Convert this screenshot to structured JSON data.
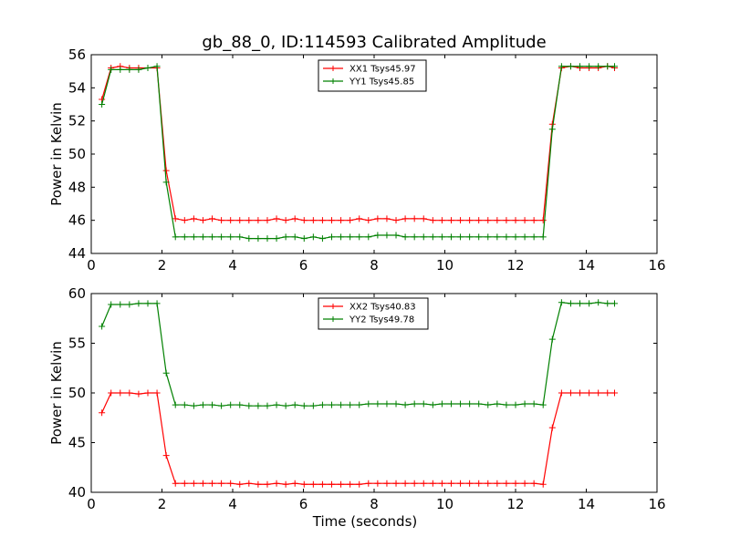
{
  "title": "gb_88_0, ID:114593 Calibrated Amplitude",
  "chart_data": [
    {
      "type": "line",
      "ylabel": "Power in Kelvin",
      "xlabel": "",
      "xlim": [
        0,
        16
      ],
      "ylim": [
        44,
        56
      ],
      "xticks": [
        0,
        2,
        4,
        6,
        8,
        10,
        12,
        14,
        16
      ],
      "yticks": [
        44,
        46,
        48,
        50,
        52,
        54,
        56
      ],
      "legend_position": "top-center",
      "x": [
        0.3,
        0.56,
        0.82,
        1.08,
        1.34,
        1.6,
        1.86,
        2.12,
        2.38,
        2.64,
        2.9,
        3.16,
        3.42,
        3.68,
        3.94,
        4.2,
        4.46,
        4.72,
        4.98,
        5.24,
        5.5,
        5.76,
        6.02,
        6.28,
        6.54,
        6.8,
        7.06,
        7.32,
        7.58,
        7.84,
        8.1,
        8.36,
        8.62,
        8.88,
        9.14,
        9.4,
        9.66,
        9.92,
        10.18,
        10.44,
        10.7,
        10.96,
        11.22,
        11.48,
        11.74,
        12.0,
        12.26,
        12.52,
        12.78,
        13.04,
        13.3,
        13.56,
        13.82,
        14.08,
        14.34,
        14.6,
        14.8
      ],
      "series": [
        {
          "name": "XX1 Tsys45.97",
          "color": "#ff0000",
          "values": [
            53.3,
            55.2,
            55.3,
            55.2,
            55.2,
            55.2,
            55.2,
            49.0,
            46.1,
            46.0,
            46.1,
            46.0,
            46.1,
            46.0,
            46.0,
            46.0,
            46.0,
            46.0,
            46.0,
            46.1,
            46.0,
            46.1,
            46.0,
            46.0,
            46.0,
            46.0,
            46.0,
            46.0,
            46.1,
            46.0,
            46.1,
            46.1,
            46.0,
            46.1,
            46.1,
            46.1,
            46.0,
            46.0,
            46.0,
            46.0,
            46.0,
            46.0,
            46.0,
            46.0,
            46.0,
            46.0,
            46.0,
            46.0,
            46.0,
            51.8,
            55.2,
            55.3,
            55.2,
            55.2,
            55.2,
            55.3,
            55.2
          ]
        },
        {
          "name": "YY1 Tsys45.85",
          "color": "#008000",
          "values": [
            53.0,
            55.1,
            55.1,
            55.1,
            55.1,
            55.2,
            55.3,
            48.3,
            45.0,
            45.0,
            45.0,
            45.0,
            45.0,
            45.0,
            45.0,
            45.0,
            44.9,
            44.9,
            44.9,
            44.9,
            45.0,
            45.0,
            44.9,
            45.0,
            44.9,
            45.0,
            45.0,
            45.0,
            45.0,
            45.0,
            45.1,
            45.1,
            45.1,
            45.0,
            45.0,
            45.0,
            45.0,
            45.0,
            45.0,
            45.0,
            45.0,
            45.0,
            45.0,
            45.0,
            45.0,
            45.0,
            45.0,
            45.0,
            45.0,
            51.5,
            55.3,
            55.3,
            55.3,
            55.3,
            55.3,
            55.3,
            55.3
          ]
        }
      ]
    },
    {
      "type": "line",
      "ylabel": "Power in Kelvin",
      "xlabel": "Time (seconds)",
      "xlim": [
        0,
        16
      ],
      "ylim": [
        40,
        60
      ],
      "xticks": [
        0,
        2,
        4,
        6,
        8,
        10,
        12,
        14,
        16
      ],
      "yticks": [
        40,
        45,
        50,
        55,
        60
      ],
      "legend_position": "top-center",
      "x": [
        0.3,
        0.56,
        0.82,
        1.08,
        1.34,
        1.6,
        1.86,
        2.12,
        2.38,
        2.64,
        2.9,
        3.16,
        3.42,
        3.68,
        3.94,
        4.2,
        4.46,
        4.72,
        4.98,
        5.24,
        5.5,
        5.76,
        6.02,
        6.28,
        6.54,
        6.8,
        7.06,
        7.32,
        7.58,
        7.84,
        8.1,
        8.36,
        8.62,
        8.88,
        9.14,
        9.4,
        9.66,
        9.92,
        10.18,
        10.44,
        10.7,
        10.96,
        11.22,
        11.48,
        11.74,
        12.0,
        12.26,
        12.52,
        12.78,
        13.04,
        13.3,
        13.56,
        13.82,
        14.08,
        14.34,
        14.6,
        14.8
      ],
      "series": [
        {
          "name": "XX2 Tsys40.83",
          "color": "#ff0000",
          "values": [
            48.0,
            50.0,
            50.0,
            50.0,
            49.9,
            50.0,
            50.0,
            43.7,
            40.9,
            40.9,
            40.9,
            40.9,
            40.9,
            40.9,
            40.9,
            40.8,
            40.9,
            40.8,
            40.8,
            40.9,
            40.8,
            40.9,
            40.8,
            40.8,
            40.8,
            40.8,
            40.8,
            40.8,
            40.8,
            40.9,
            40.9,
            40.9,
            40.9,
            40.9,
            40.9,
            40.9,
            40.9,
            40.9,
            40.9,
            40.9,
            40.9,
            40.9,
            40.9,
            40.9,
            40.9,
            40.9,
            40.9,
            40.9,
            40.8,
            46.5,
            50.0,
            50.0,
            50.0,
            50.0,
            50.0,
            50.0,
            50.0
          ]
        },
        {
          "name": "YY2 Tsys49.78",
          "color": "#008000",
          "values": [
            56.7,
            58.9,
            58.9,
            58.9,
            59.0,
            59.0,
            59.0,
            52.0,
            48.8,
            48.8,
            48.7,
            48.8,
            48.8,
            48.7,
            48.8,
            48.8,
            48.7,
            48.7,
            48.7,
            48.8,
            48.7,
            48.8,
            48.7,
            48.7,
            48.8,
            48.8,
            48.8,
            48.8,
            48.8,
            48.9,
            48.9,
            48.9,
            48.9,
            48.8,
            48.9,
            48.9,
            48.8,
            48.9,
            48.9,
            48.9,
            48.9,
            48.9,
            48.8,
            48.9,
            48.8,
            48.8,
            48.9,
            48.9,
            48.8,
            55.4,
            59.1,
            59.0,
            59.0,
            59.0,
            59.1,
            59.0,
            59.0
          ]
        }
      ]
    }
  ]
}
